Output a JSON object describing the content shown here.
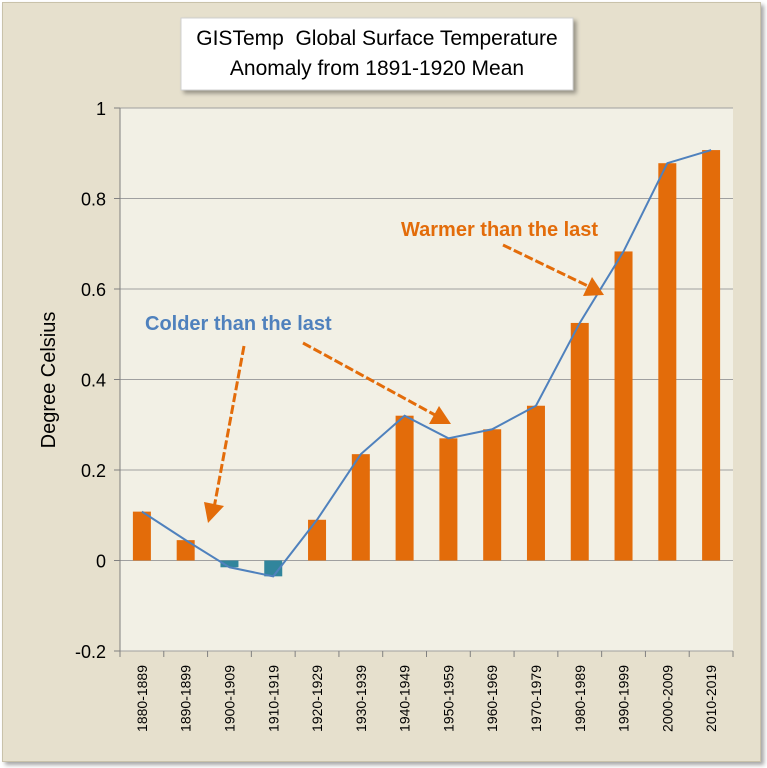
{
  "chart_data": {
    "type": "bar",
    "title_line1": "GISTemp  Global Surface Temperature",
    "title_line2": "Anomaly from 1891-1920 Mean",
    "xlabel": "",
    "ylabel": "Degree Celsius",
    "ylim": [
      -0.2,
      1.0
    ],
    "yticks": [
      -0.2,
      0,
      0.2,
      0.4,
      0.6,
      0.8,
      1
    ],
    "ytick_labels": [
      "-0.2",
      "0",
      "0.2",
      "0.4",
      "0.6",
      "0.8",
      "1"
    ],
    "categories": [
      "1880-1889",
      "1890-1899",
      "1900-1909",
      "1910-1919",
      "1920-1929",
      "1930-1939",
      "1940-1949",
      "1950-1959",
      "1960-1969",
      "1970-1979",
      "1980-1989",
      "1990-1999",
      "2000-2009",
      "2010-2019"
    ],
    "values": [
      0.108,
      0.045,
      -0.015,
      -0.035,
      0.09,
      0.235,
      0.32,
      0.27,
      0.29,
      0.342,
      0.525,
      0.683,
      0.878,
      0.907
    ],
    "bar_colors": {
      "positive": "#e36c0a",
      "negative": "#31859c"
    },
    "line_color": "#4f81bd",
    "grid": true,
    "annotations": [
      {
        "text": "Colder than the last",
        "color": "#4f81bd"
      },
      {
        "text": "Warmer than the last",
        "color": "#e36c0a"
      }
    ]
  },
  "colors": {
    "frame_bg": "#e6e0cd",
    "plot_bg": "#f2f0e5",
    "grid": "#a0a0a0",
    "arrow": "#e36c0a"
  }
}
